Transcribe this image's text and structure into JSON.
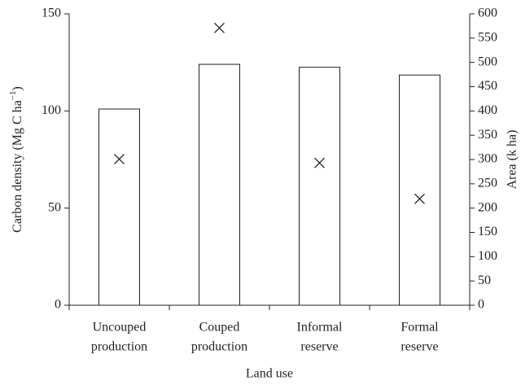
{
  "chart_data": {
    "type": "bar+scatter",
    "categories": [
      [
        "Uncouped",
        "production"
      ],
      [
        "Couped",
        "production"
      ],
      [
        "Informal",
        "reserve"
      ],
      [
        "Formal",
        "reserve"
      ]
    ],
    "xlabel": "Land use",
    "ylabel": [
      "Carbon density (Mg C ha",
      "−1",
      ")"
    ],
    "y2label": "Area (k ha)",
    "ylim": [
      0,
      150
    ],
    "yticks": [
      0,
      50,
      100,
      150
    ],
    "y2lim": [
      0,
      600
    ],
    "y2ticks": [
      0,
      50,
      100,
      150,
      200,
      250,
      300,
      350,
      400,
      450,
      500,
      550,
      600
    ],
    "series": [
      {
        "type": "bar",
        "color": "#ffffff",
        "values": [
          101,
          124,
          122.5,
          118.5
        ]
      },
      {
        "type": "scatter",
        "axis": "y2",
        "color": "#231f20",
        "values": [
          301,
          571,
          293,
          219
        ]
      }
    ]
  }
}
